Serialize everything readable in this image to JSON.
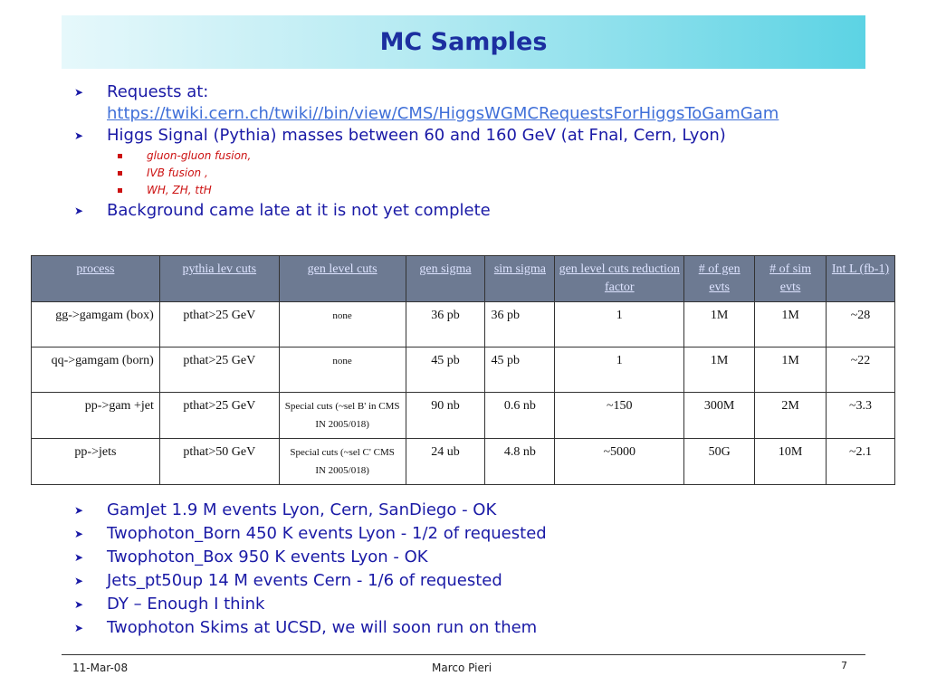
{
  "title": "MC Samples",
  "top_bullets": {
    "requests_label": "Requests at:",
    "requests_url": "https://twiki.cern.ch/twiki//bin/view/CMS/HiggsWGMCRequestsForHiggsToGamGam",
    "higgs": "Higgs Signal (Pythia) masses between 60 and 160 GeV (at Fnal, Cern, Lyon)",
    "sub": [
      "gluon-gluon fusion,",
      "IVB fusion ,",
      "WH, ZH, ttH"
    ],
    "background": "Background came late at it is not yet complete"
  },
  "table": {
    "headers": [
      "process",
      "pythia lev cuts",
      "gen level cuts",
      "gen sigma",
      "sim sigma",
      "gen level cuts reduction factor",
      "# of gen evts",
      "# of sim evts",
      "Int L (fb-1)"
    ],
    "rows": [
      [
        "gg->gamgam (box)",
        "pthat>25 GeV",
        "none",
        "36 pb",
        "36 pb",
        "1",
        "1M",
        "1M",
        "~28"
      ],
      [
        "qq->gamgam (born)",
        "pthat>25 GeV",
        "none",
        "45 pb",
        "45 pb",
        "1",
        "1M",
        "1M",
        "~22"
      ],
      [
        "pp->gam +jet",
        "pthat>25 GeV",
        "Special cuts (~sel B' in CMS IN 2005/018)",
        "90 nb",
        "0.6 nb",
        "~150",
        "300M",
        "2M",
        "~3.3"
      ],
      [
        "pp->jets",
        "pthat>50 GeV",
        "Special cuts (~sel C' CMS IN 2005/018)",
        "24 ub",
        "4.8 nb",
        "~5000",
        "50G",
        "10M",
        "~2.1"
      ]
    ]
  },
  "bottom_bullets": [
    "GamJet 1.9 M events Lyon, Cern, SanDiego - OK",
    "Twophoton_Born 450 K events Lyon - 1/2 of requested",
    "Twophoton_Box 950 K events Lyon -  OK",
    "Jets_pt50up 14 M events Cern - 1/6 of requested",
    "DY – Enough I think",
    "Twophoton Skims at UCSD, we will soon run on them"
  ],
  "footer": {
    "date": "11-Mar-08",
    "author": "Marco Pieri",
    "page": "7"
  },
  "icons": {
    "bullet": "arrow-bullet-icon",
    "sub_bullet": "square-bullet-icon"
  },
  "colors": {
    "text": "#1a1aa6",
    "sub_bullet": "#cc1111",
    "header_bg": "#6d7a92",
    "title": "#1c2fa0"
  }
}
